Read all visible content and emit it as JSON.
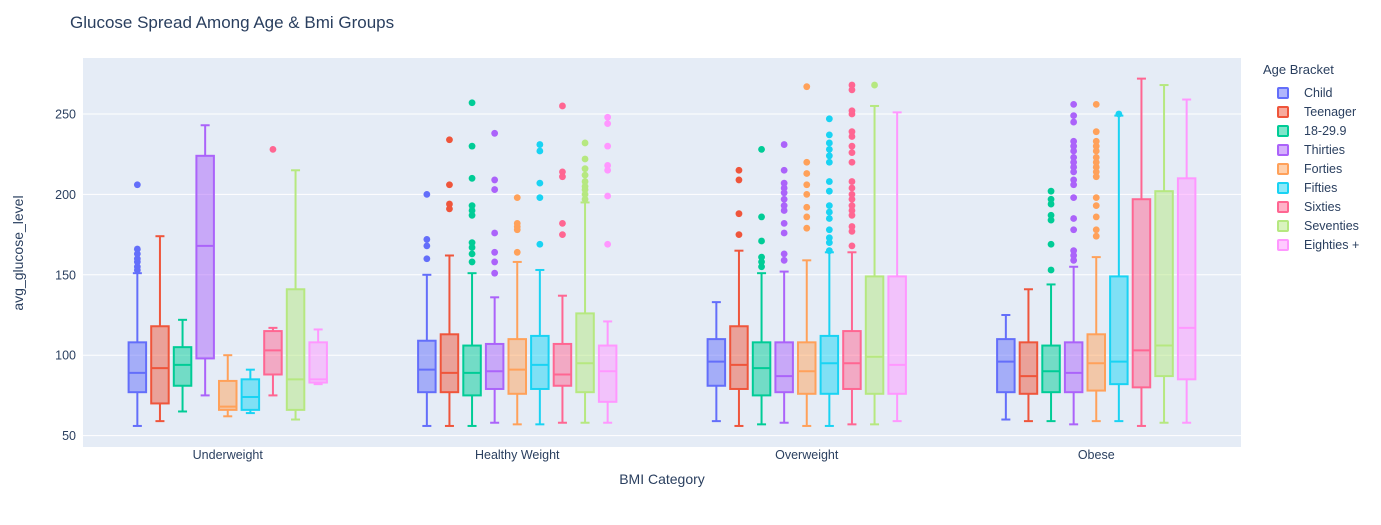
{
  "chart_data": {
    "type": "box",
    "title": "Glucose Spread Among Age & Bmi Groups",
    "xlabel": "BMI Category",
    "ylabel": "avg_glucose_level",
    "legend_title": "Age Bracket",
    "categories": [
      "Underweight",
      "Healthy Weight",
      "Overweight",
      "Obese"
    ],
    "y_ticks": [
      50,
      100,
      150,
      200,
      250
    ],
    "y_range": [
      43,
      285
    ],
    "grid": true,
    "legend_position": "right",
    "plot_bg": "#E5ECF6",
    "grid_color": "#FFFFFF",
    "text_color": "#2A3F5F",
    "series": [
      {
        "name": "Child",
        "color": "#636EFA",
        "boxes": [
          {
            "min": 56,
            "q1": 77,
            "med": 89,
            "q3": 108,
            "max": 151,
            "outliers": [
              153,
              155,
              158,
              160,
              163,
              166,
              206
            ]
          },
          {
            "min": 56,
            "q1": 77,
            "med": 91,
            "q3": 109,
            "max": 150,
            "outliers": [
              160,
              168,
              172,
              200
            ]
          },
          {
            "min": 59,
            "q1": 81,
            "med": 96,
            "q3": 110,
            "max": 133,
            "outliers": []
          },
          {
            "min": 60,
            "q1": 77,
            "med": 96,
            "q3": 110,
            "max": 125,
            "outliers": []
          }
        ]
      },
      {
        "name": "Teenager",
        "color": "#EF553B",
        "boxes": [
          {
            "min": 59,
            "q1": 70,
            "med": 92,
            "q3": 118,
            "max": 174,
            "outliers": []
          },
          {
            "min": 56,
            "q1": 77,
            "med": 89,
            "q3": 113,
            "max": 162,
            "outliers": [
              234,
              206,
              194,
              191
            ]
          },
          {
            "min": 56,
            "q1": 79,
            "med": 94,
            "q3": 118,
            "max": 165,
            "outliers": [
              215,
              209,
              188,
              175
            ]
          },
          {
            "min": 59,
            "q1": 76,
            "med": 87,
            "q3": 108,
            "max": 141,
            "outliers": []
          }
        ]
      },
      {
        "name": "18-29.9",
        "color": "#00CC96",
        "boxes": [
          {
            "min": 65,
            "q1": 81,
            "med": 94,
            "q3": 105,
            "max": 122,
            "outliers": []
          },
          {
            "min": 56,
            "q1": 75,
            "med": 89,
            "q3": 106,
            "max": 151,
            "outliers": [
              257,
              230,
              210,
              193,
              190,
              187,
              170,
              167,
              163,
              158
            ]
          },
          {
            "min": 57,
            "q1": 75,
            "med": 92,
            "q3": 108,
            "max": 151,
            "outliers": [
              228,
              186,
              171,
              161,
              158,
              155
            ]
          },
          {
            "min": 59,
            "q1": 77,
            "med": 90,
            "q3": 106,
            "max": 144,
            "outliers": [
              202,
              197,
              194,
              187,
              184,
              169,
              153
            ]
          }
        ]
      },
      {
        "name": "Thirties",
        "color": "#AB63FA",
        "boxes": [
          {
            "min": 75,
            "q1": 98,
            "med": 168,
            "q3": 224,
            "max": 243,
            "outliers": []
          },
          {
            "min": 58,
            "q1": 79,
            "med": 90,
            "q3": 107,
            "max": 136,
            "outliers": [
              238,
              209,
              203,
              176,
              164,
              158,
              151
            ]
          },
          {
            "min": 58,
            "q1": 77,
            "med": 87,
            "q3": 108,
            "max": 152,
            "outliers": [
              231,
              215,
              207,
              204,
              201,
              197,
              193,
              190,
              182,
              176,
              163,
              159
            ]
          },
          {
            "min": 57,
            "q1": 77,
            "med": 89,
            "q3": 108,
            "max": 155,
            "outliers": [
              256,
              249,
              245,
              233,
              230,
              227,
              223,
              220,
              217,
              214,
              209,
              206,
              198,
              185,
              178,
              165,
              162,
              159
            ]
          }
        ]
      },
      {
        "name": "Forties",
        "color": "#FFA15A",
        "boxes": [
          {
            "min": 62,
            "q1": 66,
            "med": 68,
            "q3": 84,
            "max": 100,
            "outliers": []
          },
          {
            "min": 57,
            "q1": 76,
            "med": 91,
            "q3": 110,
            "max": 158,
            "outliers": [
              198,
              182,
              180,
              178,
              164
            ]
          },
          {
            "min": 56,
            "q1": 76,
            "med": 90,
            "q3": 108,
            "max": 159,
            "outliers": [
              267,
              220,
              213,
              206,
              200,
              192,
              186,
              179
            ]
          },
          {
            "min": 59,
            "q1": 78,
            "med": 95,
            "q3": 113,
            "max": 161,
            "outliers": [
              256,
              239,
              233,
              230,
              227,
              223,
              220,
              217,
              214,
              211,
              198,
              193,
              186,
              178,
              174
            ]
          }
        ]
      },
      {
        "name": "Fifties",
        "color": "#19D3F3",
        "boxes": [
          {
            "min": 64,
            "q1": 66,
            "med": 74,
            "q3": 85,
            "max": 91,
            "outliers": []
          },
          {
            "min": 57,
            "q1": 79,
            "med": 94,
            "q3": 112,
            "max": 153,
            "outliers": [
              231,
              227,
              207,
              198,
              169
            ]
          },
          {
            "min": 56,
            "q1": 76,
            "med": 95,
            "q3": 112,
            "max": 164,
            "outliers": [
              247,
              237,
              232,
              228,
              224,
              220,
              208,
              202,
              193,
              189,
              185,
              178,
              173,
              170,
              165
            ]
          },
          {
            "min": 59,
            "q1": 82,
            "med": 96,
            "q3": 149,
            "max": 249,
            "outliers": [
              250
            ]
          }
        ]
      },
      {
        "name": "Sixties",
        "color": "#FF6692",
        "boxes": [
          {
            "min": 75,
            "q1": 88,
            "med": 103,
            "q3": 115,
            "max": 117,
            "outliers": [
              228
            ]
          },
          {
            "min": 58,
            "q1": 81,
            "med": 88,
            "q3": 107,
            "max": 137,
            "outliers": [
              255,
              214,
              211,
              182,
              175
            ]
          },
          {
            "min": 57,
            "q1": 79,
            "med": 95,
            "q3": 115,
            "max": 164,
            "outliers": [
              268,
              265,
              252,
              250,
              239,
              236,
              230,
              226,
              220,
              208,
              204,
              200,
              197,
              193,
              190,
              187,
              180,
              177,
              168
            ]
          },
          {
            "min": 56,
            "q1": 80,
            "med": 103,
            "q3": 197,
            "max": 272,
            "outliers": []
          }
        ]
      },
      {
        "name": "Seventies",
        "color": "#B6E880",
        "boxes": [
          {
            "min": 60,
            "q1": 66,
            "med": 85,
            "q3": 141,
            "max": 215,
            "outliers": []
          },
          {
            "min": 58,
            "q1": 77,
            "med": 95,
            "q3": 126,
            "max": 195,
            "outliers": [
              232,
              222,
              216,
              212,
              208,
              205,
              203,
              200,
              197
            ]
          },
          {
            "min": 57,
            "q1": 76,
            "med": 99,
            "q3": 149,
            "max": 255,
            "outliers": [
              268
            ]
          },
          {
            "min": 58,
            "q1": 87,
            "med": 106,
            "q3": 202,
            "max": 268,
            "outliers": []
          }
        ]
      },
      {
        "name": "Eighties +",
        "color": "#FF97FF",
        "boxes": [
          {
            "min": 82,
            "q1": 83,
            "med": 85,
            "q3": 108,
            "max": 116,
            "outliers": []
          },
          {
            "min": 58,
            "q1": 71,
            "med": 90,
            "q3": 106,
            "max": 121,
            "outliers": [
              248,
              244,
              230,
              218,
              215,
              199,
              169
            ]
          },
          {
            "min": 59,
            "q1": 76,
            "med": 94,
            "q3": 149,
            "max": 251,
            "outliers": []
          },
          {
            "min": 58,
            "q1": 85,
            "med": 117,
            "q3": 210,
            "max": 259,
            "outliers": []
          }
        ]
      }
    ]
  }
}
